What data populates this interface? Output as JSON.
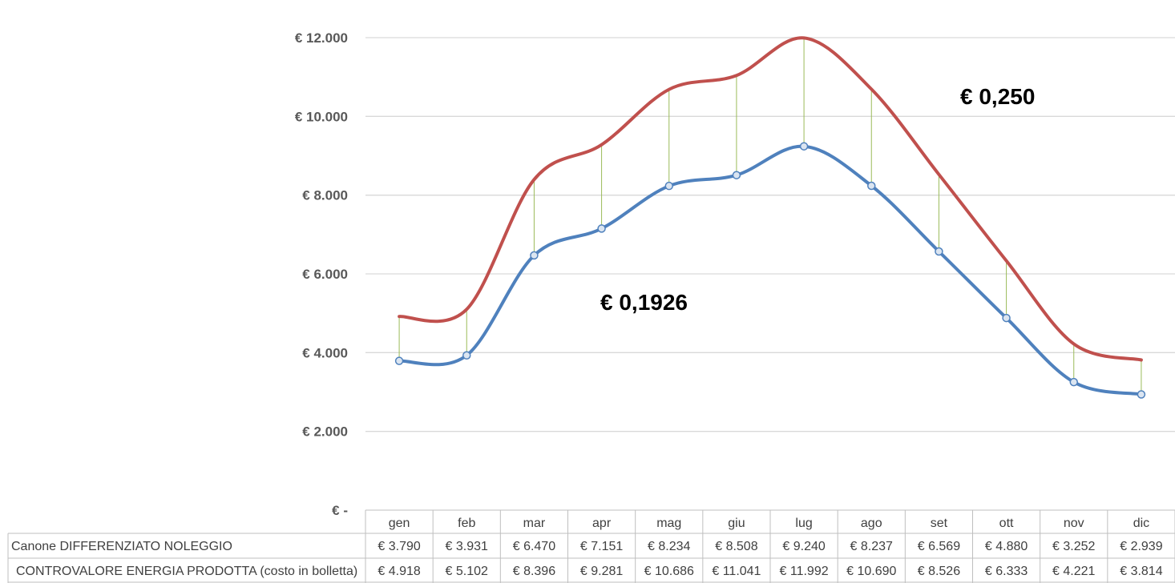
{
  "chart_data": {
    "type": "line",
    "categories": [
      "gen",
      "feb",
      "mar",
      "apr",
      "mag",
      "giu",
      "lug",
      "ago",
      "set",
      "ott",
      "nov",
      "dic"
    ],
    "y_ticks": [
      "€ -",
      "€ 2.000",
      "€ 4.000",
      "€ 6.000",
      "€ 8.000",
      "€ 10.000",
      "€ 12.000"
    ],
    "ylim": [
      0,
      12000
    ],
    "grid": true,
    "series": [
      {
        "name": "Canone DIFFERENZIATO NOLEGGIO",
        "color": "#4f81bd",
        "values": [
          3790,
          3931,
          6470,
          7151,
          8234,
          8508,
          9240,
          8237,
          6569,
          4880,
          3252,
          2939
        ],
        "labels": [
          "€ 3.790",
          "€ 3.931",
          "€ 6.470",
          "€ 7.151",
          "€ 8.234",
          "€ 8.508",
          "€ 9.240",
          "€ 8.237",
          "€ 6.569",
          "€ 4.880",
          "€ 3.252",
          "€ 2.939"
        ]
      },
      {
        "name": "CONTROVALORE ENERGIA PRODOTTA (costo in bolletta)",
        "color": "#c0504d",
        "values": [
          4918,
          5102,
          8396,
          9281,
          10686,
          11041,
          11992,
          10690,
          8526,
          6333,
          4221,
          3814
        ],
        "labels": [
          "€ 4.918",
          "€ 5.102",
          "€ 8.396",
          "€ 9.281",
          "€ 10.686",
          "€ 11.041",
          "€ 11.992",
          "€ 10.690",
          "€ 8.526",
          "€ 6.333",
          "€ 4.221",
          "€ 3.814"
        ]
      }
    ],
    "annotations": [
      "€ 0,250",
      "€ 0,1926"
    ],
    "drop_line_color": "#9bbb59"
  }
}
